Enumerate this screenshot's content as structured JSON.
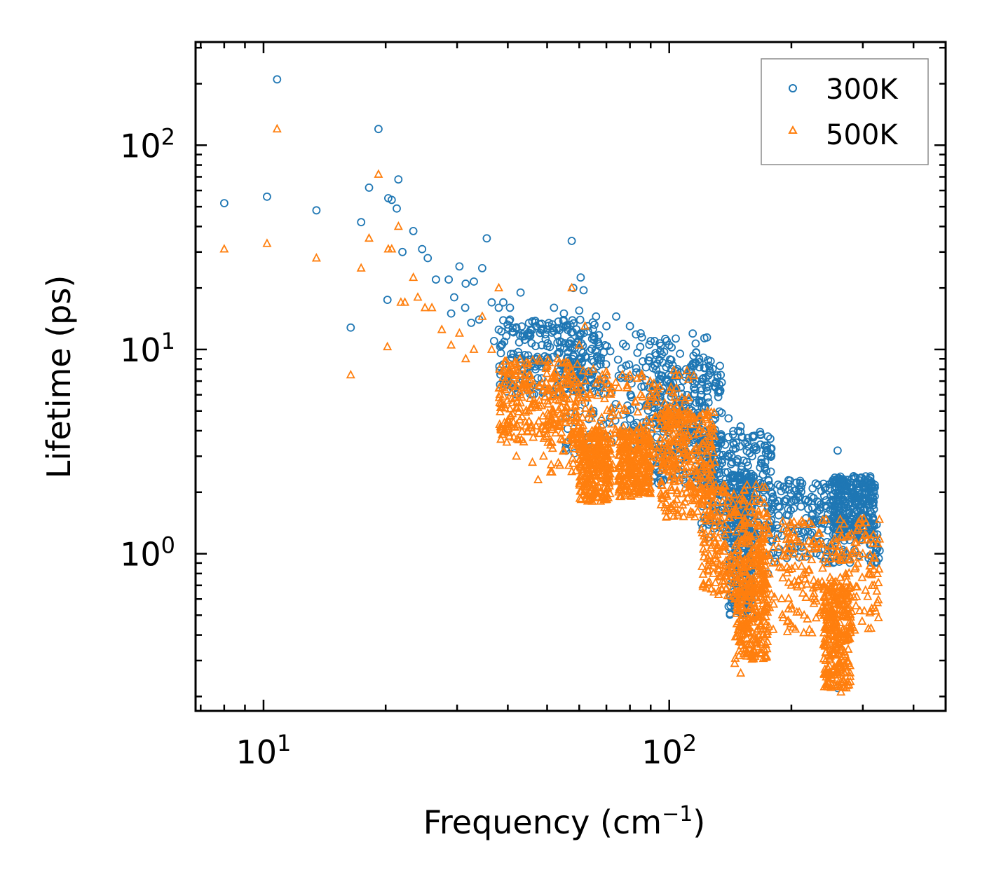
{
  "chart_data": {
    "type": "scatter",
    "title": "",
    "xlabel": "Frequency (cm",
    "xlabel_sup": "−1",
    "xlabel_close": ")",
    "ylabel": "Lifetime (ps)",
    "xscale": "log",
    "yscale": "log",
    "xlim": [
      6.8,
      480
    ],
    "ylim": [
      0.17,
      320
    ],
    "x_ticks": [
      {
        "value": 10,
        "base": "10",
        "exp": "1"
      },
      {
        "value": 100,
        "base": "10",
        "exp": "2"
      }
    ],
    "y_ticks": [
      {
        "value": 1,
        "base": "10",
        "exp": "0"
      },
      {
        "value": 10,
        "base": "10",
        "exp": "1"
      },
      {
        "value": 100,
        "base": "10",
        "exp": "2"
      }
    ],
    "legend_position": "top-right",
    "series": [
      {
        "name": "300K",
        "marker": "circle",
        "color": "#1f77b4",
        "points": [
          [
            8.0,
            52
          ],
          [
            10.2,
            56
          ],
          [
            13.5,
            48
          ],
          [
            10.8,
            210
          ],
          [
            19.2,
            120
          ],
          [
            21.5,
            68
          ],
          [
            18.2,
            62
          ],
          [
            20.3,
            55
          ],
          [
            20.7,
            54
          ],
          [
            21.3,
            49
          ],
          [
            17.4,
            42
          ],
          [
            23.4,
            38
          ],
          [
            24.6,
            31
          ],
          [
            22.0,
            30
          ],
          [
            25.4,
            28
          ],
          [
            16.4,
            12.8
          ],
          [
            20.2,
            17.5
          ],
          [
            26.6,
            22
          ],
          [
            28.6,
            22
          ],
          [
            30.4,
            25.5
          ],
          [
            31.5,
            21
          ],
          [
            33.0,
            21.5
          ],
          [
            34.6,
            25
          ],
          [
            29.5,
            18
          ],
          [
            31.4,
            16
          ],
          [
            29.0,
            15
          ],
          [
            35.5,
            35
          ],
          [
            36.5,
            17
          ],
          [
            38.0,
            16
          ],
          [
            39.0,
            17
          ],
          [
            40.5,
            14
          ],
          [
            38.0,
            12.5
          ],
          [
            34.0,
            14
          ],
          [
            32.5,
            13.5
          ],
          [
            37.0,
            11
          ],
          [
            40.5,
            16
          ],
          [
            43.0,
            19
          ],
          [
            45.0,
            11.8
          ],
          [
            47.0,
            13
          ],
          [
            48.5,
            10.5
          ],
          [
            50.0,
            12.5
          ],
          [
            52.0,
            16
          ],
          [
            53.0,
            9.5
          ],
          [
            55.0,
            15
          ],
          [
            57.5,
            34
          ],
          [
            58.0,
            20
          ],
          [
            60.5,
            22.5
          ],
          [
            61.5,
            19.5
          ],
          [
            60.0,
            15.5
          ],
          [
            63.0,
            13
          ],
          [
            66.0,
            14.5
          ],
          [
            70.0,
            13
          ],
          [
            74.0,
            14.5
          ],
          [
            80.0,
            13
          ],
          [
            85.0,
            12
          ],
          [
            92.0,
            11
          ],
          [
            100.0,
            10.5
          ],
          [
            110.0,
            8
          ],
          [
            115.0,
            6.5
          ],
          [
            120.0,
            6
          ],
          [
            125.0,
            5.5
          ],
          [
            130.0,
            4.8
          ],
          [
            140.0,
            4.6
          ],
          [
            150.0,
            4.2
          ],
          [
            160.0,
            3
          ],
          [
            170.0,
            2.2
          ],
          [
            180.0,
            1.9
          ],
          [
            200.0,
            1.8
          ],
          [
            210.0,
            1.9
          ],
          [
            220.0,
            1.8
          ],
          [
            240.0,
            2.2
          ],
          [
            260.0,
            3.2
          ],
          [
            275.0,
            2.3
          ],
          [
            290.0,
            2.2
          ],
          [
            300.0,
            1.8
          ],
          [
            310.0,
            1.5
          ],
          [
            320.0,
            1.2
          ],
          [
            260.0,
            0.22
          ],
          [
            145.0,
            0.55
          ],
          [
            150.0,
            0.55
          ],
          [
            175.0,
            0.8
          ]
        ],
        "clusters": [
          {
            "x": [
              38,
              68
            ],
            "y": [
              6,
              14
            ]
          },
          {
            "x": [
              55,
              125
            ],
            "y": [
              3,
              12
            ]
          },
          {
            "x": [
              90,
              135
            ],
            "y": [
              2.2,
              9
            ]
          },
          {
            "x": [
              120,
              180
            ],
            "y": [
              1.2,
              4
            ]
          },
          {
            "x": [
              140,
              160
            ],
            "y": [
              0.5,
              2.5
            ]
          },
          {
            "x": [
              175,
              330
            ],
            "y": [
              0.9,
              2.3
            ]
          },
          {
            "x": [
              250,
              320
            ],
            "y": [
              1.2,
              2.4
            ]
          }
        ]
      },
      {
        "name": "500K",
        "marker": "triangle",
        "color": "#ff7f0e",
        "points": [
          [
            8.0,
            31
          ],
          [
            10.2,
            33
          ],
          [
            13.5,
            28
          ],
          [
            10.8,
            120
          ],
          [
            19.2,
            72
          ],
          [
            21.5,
            40
          ],
          [
            18.2,
            35
          ],
          [
            20.3,
            31
          ],
          [
            20.7,
            31
          ],
          [
            17.4,
            25
          ],
          [
            21.8,
            17
          ],
          [
            22.3,
            17
          ],
          [
            25.0,
            16
          ],
          [
            24.0,
            18
          ],
          [
            23.4,
            22.5
          ],
          [
            26.0,
            16
          ],
          [
            16.4,
            7.5
          ],
          [
            20.2,
            10.3
          ],
          [
            27.5,
            12.5
          ],
          [
            29.0,
            10.5
          ],
          [
            30.4,
            12
          ],
          [
            31.5,
            9
          ],
          [
            33.0,
            10
          ],
          [
            34.6,
            14.5
          ],
          [
            36.5,
            10
          ],
          [
            38.0,
            20
          ],
          [
            40.5,
            8
          ],
          [
            43.0,
            6
          ],
          [
            45.0,
            5
          ],
          [
            40.0,
            4.5
          ],
          [
            42.0,
            3
          ],
          [
            46.0,
            2.8
          ],
          [
            47.5,
            2.3
          ],
          [
            49.0,
            3
          ],
          [
            51.0,
            3.4
          ],
          [
            55.0,
            3.2
          ],
          [
            57.5,
            20
          ],
          [
            60.0,
            10.5
          ],
          [
            62.0,
            13
          ],
          [
            65.0,
            8
          ],
          [
            70.0,
            7
          ],
          [
            75.0,
            6.5
          ],
          [
            80.0,
            7.5
          ],
          [
            85.0,
            6
          ],
          [
            90.0,
            6
          ],
          [
            100.0,
            5
          ],
          [
            108.0,
            4.5
          ],
          [
            115.0,
            3.2
          ],
          [
            125.0,
            2.5
          ],
          [
            135.0,
            2
          ],
          [
            140.0,
            1.5
          ],
          [
            145.0,
            0.8
          ],
          [
            150.0,
            0.38
          ],
          [
            160.0,
            1.8
          ],
          [
            170.0,
            1.2
          ],
          [
            180.0,
            0.9
          ],
          [
            200.0,
            0.7
          ],
          [
            215.0,
            0.5
          ],
          [
            230.0,
            0.7
          ],
          [
            250.0,
            1.1
          ],
          [
            260.0,
            0.4
          ],
          [
            265.0,
            0.21
          ],
          [
            275.0,
            0.5
          ],
          [
            290.0,
            1.3
          ],
          [
            300.0,
            1
          ],
          [
            310.0,
            0.8
          ],
          [
            320.0,
            0.7
          ],
          [
            145.0,
            0.29
          ],
          [
            150.0,
            0.26
          ],
          [
            165.0,
            0.35
          ]
        ],
        "clusters": [
          {
            "x": [
              38,
              60
            ],
            "y": [
              3.5,
              9
            ]
          },
          {
            "x": [
              50,
              115
            ],
            "y": [
              2.5,
              8
            ]
          },
          {
            "x": [
              60,
              72
            ],
            "y": [
              1.8,
              4
            ]
          },
          {
            "x": [
              75,
              90
            ],
            "y": [
              1.9,
              4
            ]
          },
          {
            "x": [
              95,
              130
            ],
            "y": [
              1.5,
              5
            ]
          },
          {
            "x": [
              120,
              175
            ],
            "y": [
              0.6,
              2.2
            ]
          },
          {
            "x": [
              145,
              175
            ],
            "y": [
              0.3,
              1.2
            ]
          },
          {
            "x": [
              170,
              330
            ],
            "y": [
              0.4,
              1.5
            ]
          },
          {
            "x": [
              240,
              280
            ],
            "y": [
              0.22,
              0.7
            ]
          }
        ]
      }
    ]
  }
}
